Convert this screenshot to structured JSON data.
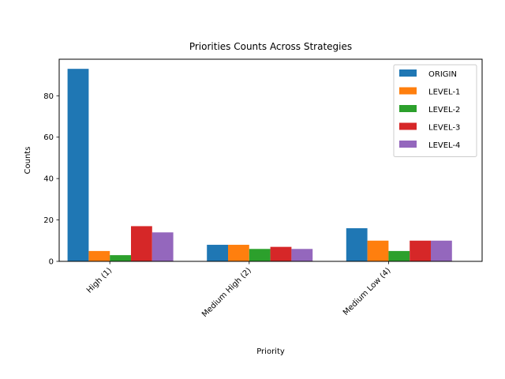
{
  "chart_data": {
    "type": "bar",
    "title": "Priorities Counts Across Strategies",
    "xlabel": "Priority",
    "ylabel": "Counts",
    "categories": [
      "High (1)",
      "Medium High (2)",
      "Medium Low (4)"
    ],
    "series": [
      {
        "name": "ORIGIN",
        "values": [
          93,
          8,
          16
        ],
        "color": "#1f77b4"
      },
      {
        "name": "LEVEL-1",
        "values": [
          5,
          8,
          10
        ],
        "color": "#ff7f0e"
      },
      {
        "name": "LEVEL-2",
        "values": [
          3,
          6,
          5
        ],
        "color": "#2ca02c"
      },
      {
        "name": "LEVEL-3",
        "values": [
          17,
          7,
          10
        ],
        "color": "#d62728"
      },
      {
        "name": "LEVEL-4",
        "values": [
          14,
          6,
          10
        ],
        "color": "#9467bd"
      }
    ],
    "ylim": [
      0,
      97.65
    ],
    "yticks": [
      0,
      20,
      40,
      60,
      80
    ],
    "grid": false,
    "legend_position": "top-right"
  }
}
